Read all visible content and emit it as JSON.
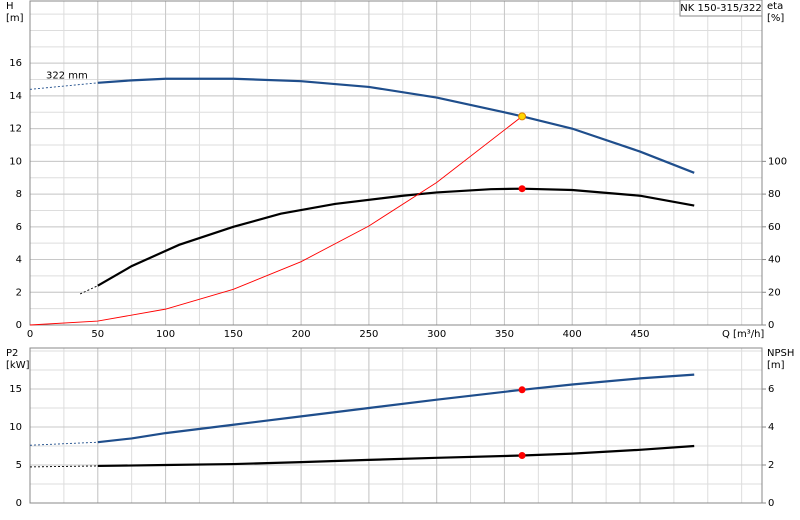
{
  "chart_data": [
    {
      "type": "line",
      "title": "NK 150-315/322",
      "ylabel": "H",
      "yunit": "[m]",
      "y2label": "eta",
      "y2unit": "[%]",
      "xlabel": "Q [m³/h]",
      "annotation": "322 mm",
      "xlim": [
        0,
        540
      ],
      "xticks": [
        0,
        50,
        100,
        150,
        200,
        250,
        300,
        350,
        400,
        450
      ],
      "ylim": [
        0,
        19.8
      ],
      "yticks": [
        0,
        2,
        4,
        6,
        8,
        10,
        12,
        14,
        16
      ],
      "y2lim": [
        0,
        198
      ],
      "y2ticks": [
        0,
        20,
        40,
        60,
        80,
        100
      ],
      "grid": true,
      "minor_grid": {
        "x": 25,
        "y": 1
      },
      "series": [
        {
          "color": "#1f4e8c",
          "style": "dashed",
          "x": [
            0,
            50
          ],
          "values": [
            14.4,
            14.8
          ]
        },
        {
          "color": "#1f4e8c",
          "style": "solid",
          "x": [
            50,
            75,
            100,
            150,
            200,
            250,
            300,
            350,
            363,
            400,
            450,
            490
          ],
          "values": [
            14.8,
            14.95,
            15.05,
            15.05,
            14.9,
            14.55,
            13.9,
            13.0,
            12.75,
            12.0,
            10.6,
            9.3
          ]
        },
        {
          "color": "#000000",
          "style": "dashed",
          "axis": "y2",
          "x": [
            37,
            50
          ],
          "values": [
            19,
            24
          ]
        },
        {
          "color": "#000000",
          "style": "solid",
          "axis": "y2",
          "x": [
            50,
            75,
            110,
            150,
            185,
            225,
            275,
            300,
            340,
            363,
            400,
            450,
            490
          ],
          "values": [
            24,
            36,
            49,
            60,
            68,
            74,
            79,
            81,
            83,
            83.3,
            82.5,
            79,
            73
          ]
        },
        {
          "color": "#ff0000",
          "style": "thin",
          "x": [
            0,
            50,
            100,
            150,
            200,
            250,
            300,
            363
          ],
          "values": [
            0,
            0.24,
            0.97,
            2.18,
            3.87,
            6.05,
            8.71,
            12.75
          ]
        }
      ],
      "markers": [
        {
          "x": 363,
          "value": 12.75,
          "color": "#ffd700"
        },
        {
          "x": 363,
          "value": 83.3,
          "color": "#ff0000",
          "axis": "y2"
        }
      ]
    },
    {
      "type": "line",
      "ylabel": "P2",
      "yunit": "[kW]",
      "y2label": "NPSH",
      "y2unit": "[m]",
      "xlim": [
        0,
        540
      ],
      "xticks": [
        0,
        50,
        100,
        150,
        200,
        250,
        300,
        350,
        400,
        450
      ],
      "ylim": [
        0,
        20.4
      ],
      "yticks": [
        0,
        5,
        10,
        15
      ],
      "y2lim": [
        0,
        8.16
      ],
      "y2ticks": [
        0,
        2,
        4,
        6
      ],
      "grid": true,
      "minor_grid": {
        "x": 25,
        "y": 2.5
      },
      "series": [
        {
          "color": "#1f4e8c",
          "style": "dashed",
          "x": [
            0,
            50
          ],
          "values": [
            7.6,
            8.0
          ]
        },
        {
          "color": "#1f4e8c",
          "style": "solid",
          "x": [
            50,
            75,
            100,
            150,
            200,
            250,
            300,
            363,
            400,
            450,
            490
          ],
          "values": [
            8.0,
            8.5,
            9.2,
            10.3,
            11.4,
            12.5,
            13.6,
            14.9,
            15.6,
            16.4,
            16.9
          ]
        },
        {
          "color": "#000000",
          "style": "dashed",
          "axis": "y2",
          "x": [
            0,
            50
          ],
          "values": [
            1.9,
            1.95
          ]
        },
        {
          "color": "#000000",
          "style": "solid",
          "axis": "y2",
          "x": [
            50,
            100,
            150,
            200,
            250,
            300,
            363,
            400,
            450,
            490
          ],
          "values": [
            1.95,
            2.0,
            2.05,
            2.15,
            2.27,
            2.38,
            2.5,
            2.6,
            2.8,
            3.0
          ]
        }
      ],
      "markers": [
        {
          "x": 363,
          "value": 14.9,
          "color": "#ff0000"
        },
        {
          "x": 363,
          "value": 2.5,
          "color": "#ff0000",
          "axis": "y2"
        }
      ]
    }
  ]
}
